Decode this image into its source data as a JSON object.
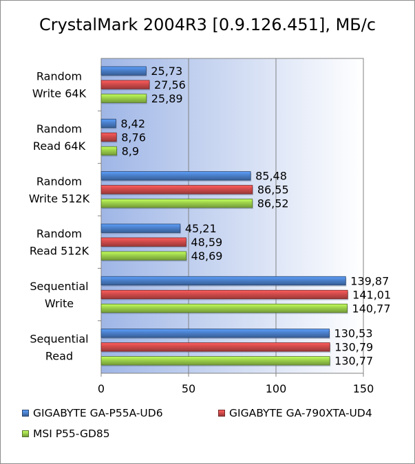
{
  "chart_data": {
    "type": "bar",
    "orientation": "horizontal",
    "title": "CrystalMark 2004R3 [0.9.126.451], МБ/с",
    "categories": [
      [
        "Random",
        "Write 64K"
      ],
      [
        "Random",
        "Read 64K"
      ],
      [
        "Random",
        "Write 512K"
      ],
      [
        "Random",
        "Read 512K"
      ],
      [
        "Sequential",
        "Write"
      ],
      [
        "Sequential",
        "Read"
      ]
    ],
    "series": [
      {
        "name": "GIGABYTE GA-P55A-UD6",
        "color": "#4a7fc9",
        "values": [
          25.73,
          8.42,
          85.48,
          45.21,
          139.87,
          130.53
        ],
        "labels": [
          "25,73",
          "8,42",
          "85,48",
          "45,21",
          "139,87",
          "130,53"
        ]
      },
      {
        "name": "GIGABYTE GA-790XTA-UD4",
        "color": "#cf4a4a",
        "values": [
          27.56,
          8.76,
          86.55,
          48.59,
          141.01,
          130.79
        ],
        "labels": [
          "27,56",
          "8,76",
          "86,55",
          "48,59",
          "141,01",
          "130,79"
        ]
      },
      {
        "name": "MSI P55-GD85",
        "color": "#9bcf4a",
        "values": [
          25.89,
          8.9,
          86.52,
          48.69,
          140.77,
          130.77
        ],
        "labels": [
          "25,89",
          "8,9",
          "86,52",
          "48,69",
          "140,77",
          "130,77"
        ]
      }
    ],
    "xlim": [
      0,
      150
    ],
    "x_ticks": [
      0,
      50,
      100,
      150
    ],
    "grid": "vertical",
    "legend_position": "bottom"
  }
}
